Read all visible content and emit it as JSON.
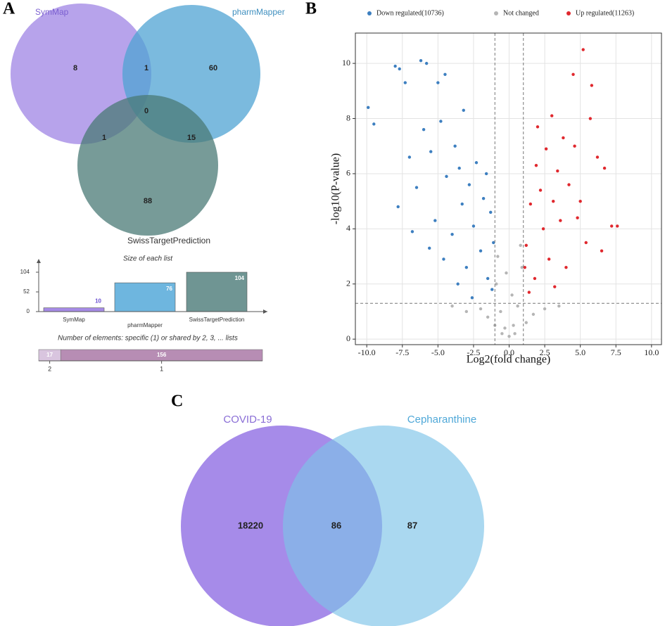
{
  "panel_labels": [
    "A",
    "B",
    "C"
  ],
  "chart_data": [
    {
      "type": "venn",
      "sets": [
        {
          "name": "SymMap",
          "color": "#9f84e4",
          "label_color": "#7b5fd0"
        },
        {
          "name": "pharmMapper",
          "color": "#4fa3d3",
          "label_color": "#3e8fbf"
        },
        {
          "name": "SwissTargetPrediction",
          "color": "#4a7a76",
          "label_color": "#333333"
        }
      ],
      "regions": [
        {
          "sets": [
            0
          ],
          "value": 8
        },
        {
          "sets": [
            0,
            1
          ],
          "value": 1
        },
        {
          "sets": [
            1
          ],
          "value": 60
        },
        {
          "sets": [
            0,
            1,
            2
          ],
          "value": 0
        },
        {
          "sets": [
            0,
            2
          ],
          "value": 1
        },
        {
          "sets": [
            1,
            2
          ],
          "value": 15
        },
        {
          "sets": [
            2
          ],
          "value": 88
        }
      ]
    },
    {
      "type": "bar",
      "title": "Size of each list",
      "categories": [
        "SymMap",
        "pharmMapper",
        "SwissTargetPrediction"
      ],
      "values": [
        10,
        76,
        104
      ],
      "colors": [
        "#a68be6",
        "#6eb6df",
        "#6f9593"
      ],
      "ylim": [
        0,
        130
      ],
      "yticks": [
        0,
        52,
        104
      ]
    },
    {
      "type": "stackedbar",
      "title": "Number of elements: specific (1) or shared by 2, 3, ... lists",
      "categories": [
        "2",
        "1"
      ],
      "values": [
        17,
        156
      ],
      "colors": [
        "#d9c5df",
        "#b78db4"
      ],
      "xlim": [
        0,
        173
      ]
    },
    {
      "type": "scatter",
      "xlabel": "Log2(fold change)",
      "ylabel": "-log10(P-value)",
      "xlim": [
        -10.8,
        10.7
      ],
      "ylim": [
        -0.2,
        11.1
      ],
      "xticks": [
        {
          "value": -10,
          "label": "-10.0"
        },
        -7.5,
        {
          "value": -5,
          "label": "-5.0"
        },
        -2.5,
        {
          "value": 0,
          "label": "0.0"
        },
        2.5,
        {
          "value": 5,
          "label": "5.0"
        },
        7.5,
        {
          "value": 10,
          "label": "10.0"
        }
      ],
      "yticks": [
        0,
        2,
        4,
        6,
        8,
        10
      ],
      "grid": true,
      "legend": "top",
      "thresholds": {
        "x": [
          -1,
          1
        ],
        "y": 1.3
      },
      "series": [
        {
          "name": "Down regulated(10736)",
          "color": "#3d7fc0",
          "x": [
            -9.9,
            -9.5,
            -8.0,
            -7.7,
            -7.3,
            -6.2,
            -5.8,
            -5.0,
            -4.5,
            -3.2,
            -7.8,
            -7.0,
            -6.5,
            -6.0,
            -5.5,
            -5.2,
            -4.8,
            -4.4,
            -4.0,
            -3.8,
            -3.5,
            -3.3,
            -3.0,
            -2.8,
            -2.5,
            -2.3,
            -2.0,
            -1.8,
            -1.5,
            -1.3,
            -1.2,
            -1.1,
            -4.6,
            -3.6,
            -2.6,
            -6.8,
            -5.6,
            -1.6
          ],
          "y": [
            8.4,
            7.8,
            9.9,
            9.8,
            9.3,
            10.1,
            10.0,
            9.3,
            9.6,
            8.3,
            4.8,
            6.6,
            5.5,
            7.6,
            6.8,
            4.3,
            7.9,
            5.9,
            3.8,
            7.0,
            6.2,
            4.9,
            2.6,
            5.6,
            4.1,
            6.4,
            3.2,
            5.1,
            2.2,
            4.6,
            1.8,
            3.5,
            2.9,
            2.0,
            1.5,
            3.9,
            3.3,
            6.0
          ]
        },
        {
          "name": "Not changed",
          "color": "#b5b5b5",
          "x": [
            -0.9,
            -0.6,
            -0.3,
            0.0,
            0.3,
            0.6,
            0.9,
            -0.8,
            0.8,
            -2.0,
            -1.5,
            -3.0,
            1.7,
            2.5,
            3.5,
            -0.5,
            0.4,
            -1.0,
            1.2,
            -4.0,
            0.2,
            -0.2
          ],
          "y": [
            2.0,
            1.0,
            0.4,
            0.1,
            0.5,
            1.2,
            2.6,
            3.0,
            3.4,
            1.1,
            0.8,
            1.0,
            0.9,
            1.1,
            1.2,
            0.2,
            0.2,
            0.5,
            0.6,
            1.2,
            1.6,
            2.4
          ]
        },
        {
          "name": "Up regulated(11263)",
          "color": "#e0282e",
          "x": [
            5.2,
            4.5,
            5.8,
            5.7,
            3.0,
            2.0,
            6.2,
            6.7,
            7.6,
            7.2,
            6.5,
            3.8,
            2.6,
            3.4,
            4.2,
            2.2,
            1.5,
            1.2,
            1.8,
            2.8,
            3.6,
            4.8,
            5.4,
            4.0,
            2.4,
            1.4,
            3.2,
            5.0,
            1.9,
            1.1,
            4.6,
            3.1
          ],
          "y": [
            10.5,
            9.6,
            9.2,
            8.0,
            8.1,
            7.7,
            6.6,
            6.2,
            4.1,
            4.1,
            3.2,
            7.3,
            6.9,
            6.1,
            5.6,
            5.4,
            4.9,
            3.4,
            2.2,
            2.9,
            4.3,
            4.4,
            3.5,
            2.6,
            4.0,
            1.7,
            1.9,
            5.0,
            6.3,
            2.6,
            7.0,
            5.0
          ]
        }
      ]
    },
    {
      "type": "venn",
      "sets": [
        {
          "name": "COVID-19",
          "color": "#a68be9",
          "label_color": "#8a6ed6"
        },
        {
          "name": "Cepharanthine",
          "color": "#7cc3e8",
          "label_color": "#4fa8d8"
        }
      ],
      "regions": [
        {
          "sets": [
            0
          ],
          "value": 18220
        },
        {
          "sets": [
            0,
            1
          ],
          "value": 86
        },
        {
          "sets": [
            1
          ],
          "value": 87
        }
      ]
    }
  ]
}
